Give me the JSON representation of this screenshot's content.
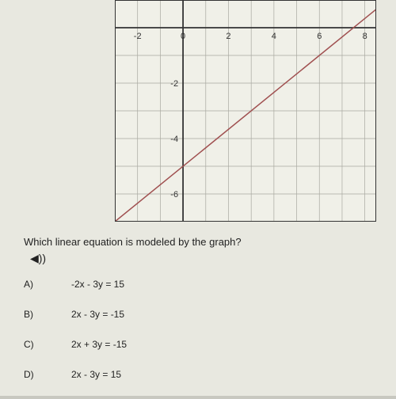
{
  "question": "Which linear equation is modeled by the graph?",
  "answers": {
    "a": {
      "label": "A)",
      "text": "-2x - 3y = 15"
    },
    "b": {
      "label": "B)",
      "text": "2x - 3y = -15"
    },
    "c": {
      "label": "C)",
      "text": "2x + 3y = -15"
    },
    "d": {
      "label": "D)",
      "text": "2x - 3y = 15"
    }
  },
  "chart": {
    "type": "line",
    "xlim": [
      -3,
      8.5
    ],
    "ylim": [
      -7,
      1
    ],
    "xticks": [
      -2,
      0,
      2,
      4,
      6,
      8
    ],
    "yticks": [
      -6,
      -4,
      -2,
      0
    ],
    "line_points": [
      [
        -3,
        -7
      ],
      [
        8.5,
        0.6667
      ]
    ],
    "line_color": "#a05050",
    "line_width": 1.5,
    "grid_color": "#a8a8a0",
    "axis_color": "#333",
    "background": "#f0f0e8",
    "tick_fontsize": 11,
    "tick_color": "#333"
  }
}
